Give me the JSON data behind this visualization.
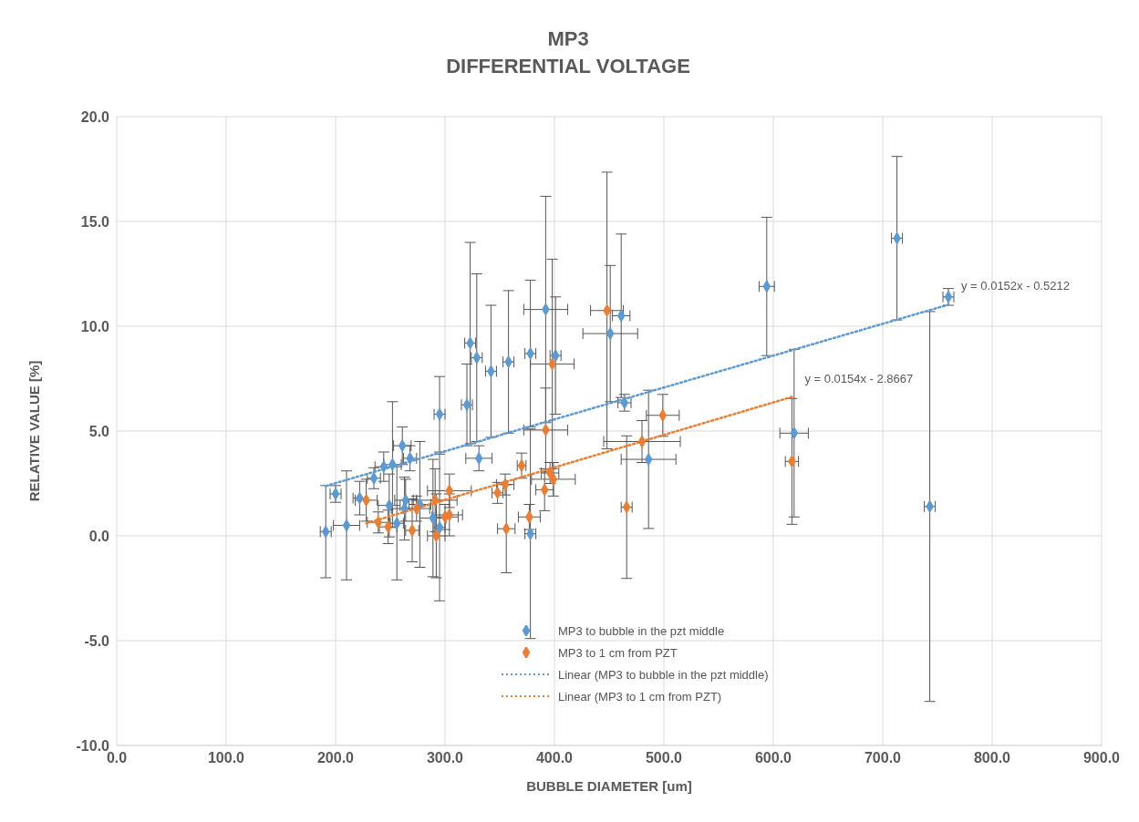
{
  "chart_data": {
    "type": "scatter",
    "title": "MP3",
    "subtitle": "DIFFERENTIAL VOLTAGE",
    "xlabel": "BUBBLE DIAMETER [um]",
    "ylabel": "RELATIVE VALUE [%]",
    "xlim": [
      0,
      900
    ],
    "xticks": [
      {
        "value": 0,
        "label": "0.0"
      },
      {
        "value": 100,
        "label": "100.0"
      },
      {
        "value": 200,
        "label": "200.0"
      },
      {
        "value": 300,
        "label": "300.0"
      },
      {
        "value": 400,
        "label": "400.0"
      },
      {
        "value": 500,
        "label": "500.0"
      },
      {
        "value": 600,
        "label": "600.0"
      },
      {
        "value": 700,
        "label": "700.0"
      },
      {
        "value": 800,
        "label": "800.0"
      },
      {
        "value": 900,
        "label": "900.0"
      }
    ],
    "ylim": [
      -10,
      20
    ],
    "yticks": [
      {
        "value": -10,
        "label": "-10.0"
      },
      {
        "value": -5,
        "label": "-5.0"
      },
      {
        "value": 0,
        "label": "0.0"
      },
      {
        "value": 5,
        "label": "5.0"
      },
      {
        "value": 10,
        "label": "10.0"
      },
      {
        "value": 15,
        "label": "15.0"
      },
      {
        "value": 20,
        "label": "20.0"
      }
    ],
    "grid": true,
    "legend": "bottom",
    "marker": "diamond",
    "series": [
      {
        "name": "MP3 to bubble in the pzt middle",
        "color": "#5b9bd5",
        "x": [
          191,
          200,
          210,
          222,
          235,
          244,
          249,
          252,
          256,
          261,
          263,
          264,
          268,
          277,
          289,
          295,
          295,
          320,
          323,
          329,
          331,
          342,
          358,
          378,
          378,
          392,
          401,
          451,
          461,
          464,
          486,
          594,
          619,
          713,
          743,
          760
        ],
        "values": [
          0.2,
          2.0,
          0.5,
          1.8,
          2.75,
          3.3,
          1.45,
          3.4,
          0.6,
          4.3,
          1.3,
          1.7,
          3.7,
          1.5,
          0.85,
          0.4,
          5.8,
          6.25,
          9.2,
          8.5,
          3.7,
          7.85,
          8.3,
          8.7,
          0.1,
          10.8,
          8.6,
          9.65,
          10.5,
          6.35,
          3.65,
          11.9,
          4.9,
          14.2,
          1.4,
          11.4
        ],
        "errors": [
          2.2,
          0.4,
          2.6,
          0.8,
          0.5,
          0.7,
          1.5,
          3.0,
          2.7,
          0.9,
          1.5,
          1.0,
          0.6,
          3.0,
          2.8,
          3.5,
          1.8,
          1.95,
          4.8,
          4.0,
          0.6,
          3.15,
          3.4,
          3.5,
          5.0,
          5.4,
          2.8,
          3.25,
          3.9,
          0.4,
          3.3,
          3.3,
          4.0,
          3.9,
          9.3,
          0.4
        ],
        "xerrors": [
          5,
          5,
          12,
          6,
          6,
          8,
          10,
          8,
          6,
          8,
          12,
          10,
          6,
          10,
          12,
          5,
          5,
          5,
          5,
          5,
          12,
          5,
          5,
          5,
          5,
          20,
          5,
          25,
          8,
          6,
          25,
          7,
          13,
          5,
          5,
          5
        ]
      },
      {
        "name": "MP3 to 1 cm from PZT",
        "color": "#ed7d31",
        "x": [
          228,
          239,
          248,
          270,
          274,
          291,
          292,
          300,
          304,
          304,
          348,
          355,
          356,
          370,
          377,
          391,
          392,
          396,
          398,
          399,
          448,
          466,
          480,
          499,
          617
        ],
        "values": [
          1.7,
          0.64,
          0.43,
          0.26,
          1.3,
          1.7,
          0.0,
          0.9,
          1.0,
          2.15,
          2.05,
          2.45,
          0.34,
          3.35,
          0.9,
          2.2,
          5.05,
          3.0,
          8.2,
          2.7,
          10.75,
          1.37,
          4.5,
          5.75,
          3.55
        ],
        "errors": [
          1.0,
          0.5,
          0.8,
          1.5,
          0.6,
          1.5,
          2.0,
          0.6,
          1.0,
          0.8,
          0.5,
          0.5,
          2.1,
          0.6,
          0.6,
          1.0,
          2.0,
          0.5,
          5.0,
          0.8,
          6.6,
          3.4,
          1.0,
          1.0,
          3.0
        ],
        "xerrors": [
          10,
          10,
          8,
          6,
          12,
          20,
          8,
          12,
          12,
          20,
          5,
          8,
          8,
          4,
          10,
          8,
          20,
          8,
          20,
          20,
          15,
          5,
          35,
          15,
          6
        ]
      },
      {
        "name": "Linear (MP3 to bubble in the pzt middle)",
        "type": "line",
        "marker": "none",
        "line_style": "dotted",
        "color": "#5b9bd5",
        "x": [
          191,
          760
        ],
        "values": [
          2.38,
          11.03
        ]
      },
      {
        "name": "Linear (MP3 to 1 cm from PZT)",
        "type": "line",
        "marker": "none",
        "line_style": "dotted",
        "color": "#ed7d31",
        "x": [
          228,
          617
        ],
        "values": [
          0.6,
          6.63
        ]
      }
    ],
    "annotations": [
      {
        "text": "y = 0.0152x - 0.5212",
        "x": 760,
        "y": 11.03
      },
      {
        "text": "y = 0.0154x - 2.8667",
        "x": 617,
        "y": 6.63
      }
    ]
  }
}
